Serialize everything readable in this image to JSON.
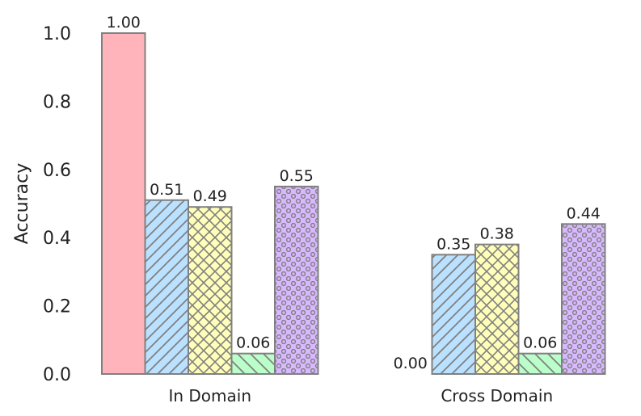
{
  "chart_data": {
    "type": "bar",
    "categories": [
      "In Domain",
      "Cross Domain"
    ],
    "ylabel": "Accuracy",
    "ylim": [
      0,
      1.0
    ],
    "yticks": [
      "0.0",
      "0.2",
      "0.4",
      "0.6",
      "0.8",
      "1.0"
    ],
    "grid": false,
    "legend": "none",
    "series": [
      {
        "values": [
          1.0,
          0.0
        ],
        "labels": [
          "1.00",
          "0.00"
        ],
        "color": "#ffb3ba",
        "pattern": "none"
      },
      {
        "values": [
          0.51,
          0.35
        ],
        "labels": [
          "0.51",
          "0.35"
        ],
        "color": "#bae1ff",
        "pattern": "diagonal"
      },
      {
        "values": [
          0.49,
          0.38
        ],
        "labels": [
          "0.49",
          "0.38"
        ],
        "color": "#ffffba",
        "pattern": "crosshatch"
      },
      {
        "values": [
          0.06,
          0.06
        ],
        "labels": [
          "0.06",
          "0.06"
        ],
        "color": "#baffc9",
        "pattern": "backslash"
      },
      {
        "values": [
          0.55,
          0.44
        ],
        "labels": [
          "0.55",
          "0.44"
        ],
        "color": "#d8b8ff",
        "pattern": "dots"
      }
    ],
    "edge_color": "#808080"
  }
}
